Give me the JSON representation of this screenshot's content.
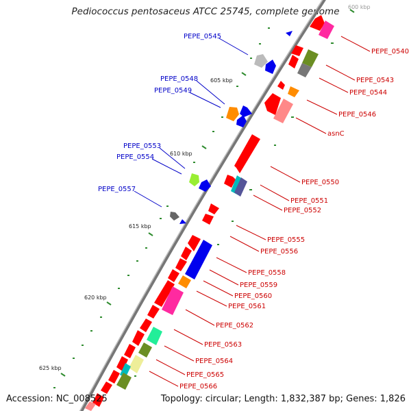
{
  "title": "Pediococcus pentosaceus ATCC 25745, complete genome",
  "accession": "Accession: NC_008525",
  "topology": "Topology: circular; Length: 1,832,387 bp; Genes: 1,826",
  "colors": {
    "backbone": "#777777",
    "forward_label": "#0000c8",
    "reverse_label": "#cc0000",
    "tick": "#2e8b2e",
    "red": "#ff0000",
    "blue": "#0000ee",
    "magenta": "#ff2aa0",
    "orange": "#ff8c00",
    "gray": "#bbbbbb",
    "olive": "#6b8e23",
    "green": "#22ee99",
    "teal": "#00bbbb",
    "khaki": "#eeee99",
    "salmon": "#ff8888",
    "lime": "#99ee33",
    "dark_gray": "#666666"
  },
  "scale_labels": [
    "600 kbp",
    "605 kbp",
    "610 kbp",
    "615 kbp",
    "620 kbp",
    "625 kbp"
  ],
  "forward_genes": [
    {
      "id": "PEPE_0545",
      "color": "gray"
    },
    {
      "id": "PEPE_0548",
      "color": "orange"
    },
    {
      "id": "PEPE_0549",
      "color": "blue"
    },
    {
      "id": "PEPE_0553",
      "color": "lime"
    },
    {
      "id": "PEPE_0554",
      "color": "blue"
    },
    {
      "id": "PEPE_0557",
      "color": "dark_gray"
    }
  ],
  "reverse_genes": [
    {
      "id": "PEPE_0540"
    },
    {
      "id": "PEPE_0543"
    },
    {
      "id": "PEPE_0544"
    },
    {
      "id": "PEPE_0546"
    },
    {
      "id": "asnC"
    },
    {
      "id": "PEPE_0550"
    },
    {
      "id": "PEPE_0551"
    },
    {
      "id": "PEPE_0552"
    },
    {
      "id": "PEPE_0555"
    },
    {
      "id": "PEPE_0556"
    },
    {
      "id": "PEPE_0558"
    },
    {
      "id": "PEPE_0559"
    },
    {
      "id": "PEPE_0560"
    },
    {
      "id": "PEPE_0561"
    },
    {
      "id": "PEPE_0562"
    },
    {
      "id": "PEPE_0563"
    },
    {
      "id": "PEPE_0564"
    },
    {
      "id": "PEPE_0565"
    },
    {
      "id": "PEPE_0566"
    }
  ]
}
